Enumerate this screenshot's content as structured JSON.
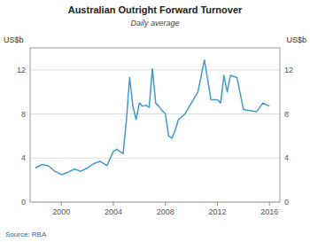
{
  "chart_data": {
    "type": "line",
    "title": "Australian Outright Forward Turnover",
    "subtitle": "Daily average",
    "ylabel": "US$b",
    "y2label": "US$b",
    "source": "Source:   RBA",
    "color": "#4499cc",
    "grid": true,
    "xlim": [
      1997.6,
      2016.8
    ],
    "xticks": [
      2000,
      2004,
      2008,
      2012,
      2016
    ],
    "ylim": [
      0,
      14
    ],
    "yticks": [
      0,
      4,
      8,
      12
    ],
    "y2lim": [
      0,
      14
    ],
    "y2ticks": [
      0,
      4,
      8,
      12
    ],
    "x": [
      1998.0,
      1998.5,
      1999.0,
      1999.5,
      2000.0,
      2000.5,
      2001.0,
      2001.5,
      2002.0,
      2002.5,
      2003.0,
      2003.5,
      2004.0,
      2004.25,
      2004.5,
      2004.75,
      2005.0,
      2005.25,
      2005.5,
      2005.75,
      2006.0,
      2006.25,
      2006.5,
      2006.75,
      2007.0,
      2007.25,
      2007.5,
      2007.75,
      2008.0,
      2008.25,
      2008.5,
      2008.75,
      2009.0,
      2009.5,
      2010.0,
      2010.5,
      2011.0,
      2011.5,
      2012.0,
      2012.25,
      2012.5,
      2012.75,
      2013.0,
      2013.5,
      2014.0,
      2014.5,
      2015.0,
      2015.5,
      2016.0
    ],
    "values": [
      3.1,
      3.4,
      3.3,
      2.8,
      2.5,
      2.7,
      3.0,
      2.8,
      3.1,
      3.5,
      3.7,
      3.3,
      4.6,
      4.8,
      4.6,
      4.4,
      7.4,
      11.3,
      8.7,
      7.5,
      9.0,
      8.7,
      8.8,
      8.6,
      12.1,
      9.0,
      8.7,
      8.3,
      8.0,
      6.0,
      5.8,
      6.5,
      7.5,
      8.0,
      9.0,
      10.0,
      12.9,
      9.3,
      9.3,
      9.0,
      11.5,
      10.0,
      11.5,
      11.3,
      8.4,
      8.3,
      8.2,
      9.0,
      8.7
    ]
  }
}
